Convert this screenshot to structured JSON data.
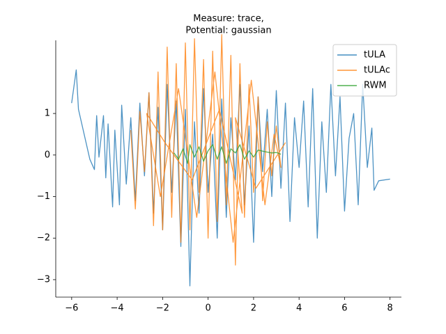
{
  "chart_data": {
    "type": "line",
    "title": [
      "Measure: trace,",
      "Potential: gaussian"
    ],
    "xlim": [
      -6.7,
      8.5
    ],
    "ylim": [
      -3.42,
      2.76
    ],
    "xticks": [
      {
        "value": -6,
        "label": "−6"
      },
      {
        "value": -4,
        "label": "−4"
      },
      {
        "value": -2,
        "label": "−2"
      },
      0,
      2,
      4,
      6,
      8
    ],
    "yticks": [
      {
        "value": -3,
        "label": "−3"
      },
      {
        "value": -2,
        "label": "−2"
      },
      {
        "value": -1,
        "label": "−1"
      },
      0,
      1
    ],
    "legend": "upper right",
    "series": [
      {
        "name": "tULA",
        "color": "#1f77b4",
        "x": [
          -6,
          -5.8,
          -5.7,
          -5.2,
          -5.0,
          -4.9,
          -4.8,
          -4.6,
          -4.5,
          -4.4,
          -4.2,
          -4.1,
          -3.9,
          -3.8,
          -3.6,
          -3.4,
          -3.2,
          -3.0,
          -2.8,
          -2.6,
          -2.4,
          -2.2,
          -2.0,
          -1.8,
          -1.6,
          -1.4,
          -1.2,
          -1.0,
          -0.8,
          -0.6,
          -0.4,
          -0.2,
          0.0,
          0.2,
          0.4,
          0.6,
          0.8,
          1.0,
          1.2,
          1.4,
          1.6,
          1.8,
          2.0,
          2.2,
          2.4,
          2.6,
          2.8,
          3.0,
          3.2,
          3.4,
          3.6,
          3.8,
          4.0,
          4.2,
          4.4,
          4.6,
          4.8,
          5.0,
          5.2,
          5.4,
          5.6,
          5.8,
          6.0,
          6.2,
          6.4,
          6.6,
          6.8,
          7.0,
          7.2,
          7.3,
          7.5,
          8.0
        ],
        "values": [
          1.25,
          2.05,
          1.1,
          -0.1,
          -0.35,
          0.95,
          -0.05,
          0.95,
          -0.55,
          0.75,
          -1.25,
          0.6,
          -1.2,
          1.2,
          -0.7,
          0.9,
          -1.1,
          1.25,
          -0.5,
          1.5,
          -1.4,
          1.15,
          -1.8,
          1.7,
          -0.9,
          1.3,
          -2.2,
          1.1,
          -3.15,
          0.8,
          -1.4,
          1.6,
          -0.9,
          0.5,
          -2.0,
          1.35,
          -1.5,
          0.9,
          -0.6,
          1.7,
          -1.2,
          0.7,
          -2.1,
          1.4,
          -0.4,
          1.1,
          -1.0,
          1.55,
          -0.8,
          1.25,
          -1.6,
          0.9,
          -0.3,
          1.3,
          -1.25,
          1.6,
          -2.0,
          0.8,
          -0.9,
          1.7,
          -0.5,
          1.4,
          -1.35,
          0.4,
          1.0,
          -1.2,
          1.7,
          -0.3,
          0.65,
          -0.85,
          -0.62,
          -0.58
        ]
      },
      {
        "name": "tULAc",
        "color": "#ff7f0e",
        "x": [
          -3.4,
          -3.2,
          -3.0,
          -2.8,
          -2.6,
          -2.4,
          -2.2,
          -2.0,
          -1.8,
          -1.6,
          -1.4,
          -1.2,
          -1.0,
          -0.8,
          -0.6,
          -0.4,
          -0.2,
          0.0,
          0.2,
          0.4,
          0.6,
          0.8,
          1.0,
          1.2,
          1.4,
          1.6,
          1.8,
          2.0,
          2.2,
          2.4,
          2.6,
          2.8,
          3.0,
          3.2,
          2.9,
          2.5,
          1.9,
          1.1,
          0.3,
          -0.5,
          -1.3,
          -2.1,
          -2.7,
          -1.9,
          -0.7,
          0.5,
          1.5,
          1.2,
          2.1,
          3.4
        ],
        "values": [
          0.6,
          -1.3,
          1.05,
          -0.4,
          1.5,
          -1.7,
          2.0,
          -1.8,
          2.6,
          -1.5,
          2.2,
          -2.1,
          2.7,
          -1.8,
          2.8,
          -0.9,
          2.3,
          -2.0,
          2.5,
          -1.6,
          2.9,
          -1.2,
          2.4,
          -2.65,
          2.2,
          -1.5,
          1.7,
          -0.9,
          1.4,
          -1.1,
          0.8,
          -0.5,
          0.7,
          -0.3,
          0.5,
          -1.2,
          1.8,
          -2.1,
          2.0,
          -1.5,
          1.6,
          -1.0,
          1.0,
          0.3,
          -0.6,
          1.1,
          -1.4,
          0.9,
          -0.8,
          0.3
        ]
      },
      {
        "name": "RWM",
        "color": "#2ca02c",
        "x": [
          -1.5,
          -1.3,
          -1.1,
          -0.9,
          -0.8,
          -0.6,
          -0.4,
          -0.2,
          0.0,
          0.2,
          0.4,
          0.6,
          0.8,
          1.0,
          1.2,
          1.4,
          1.6,
          1.8,
          2.0,
          2.2,
          2.5,
          2.8,
          3.0,
          3.2
        ],
        "values": [
          0.05,
          -0.1,
          0.15,
          -0.2,
          0.25,
          -0.05,
          0.2,
          -0.15,
          0.1,
          0.25,
          -0.1,
          0.2,
          -0.2,
          0.15,
          0.05,
          0.25,
          -0.1,
          0.1,
          -0.05,
          0.12,
          0.08,
          0.05,
          0.06,
          0.02
        ]
      }
    ]
  }
}
